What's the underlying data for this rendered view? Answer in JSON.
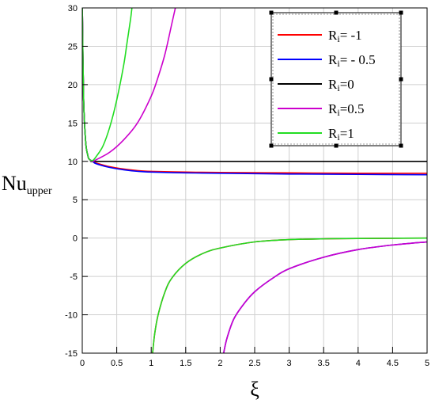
{
  "chart_data": {
    "type": "line",
    "xlabel": "ξ",
    "ylabel": "Nu",
    "ylabel_sub": "upper",
    "xlim": [
      0,
      5
    ],
    "ylim": [
      -15,
      30
    ],
    "grid": true,
    "legend_position": "top-right",
    "x_ticks": [
      0,
      0.5,
      1,
      1.5,
      2,
      2.5,
      3,
      3.5,
      4,
      4.5,
      5
    ],
    "x_tick_labels": [
      "0",
      "0.5",
      "1",
      "1.5",
      "2",
      "2.5",
      "3",
      "3.5",
      "4",
      "4.5",
      "5"
    ],
    "y_ticks": [
      -15,
      -10,
      -5,
      0,
      5,
      10,
      15,
      20,
      25,
      30
    ],
    "y_tick_labels": [
      "-15",
      "-10",
      "-5",
      "0",
      "5",
      "10",
      "15",
      "20",
      "25",
      "30"
    ],
    "series": [
      {
        "name": "Ri= -1",
        "label_main": "R",
        "label_sub": "i",
        "label_rest": "= -1",
        "color": "#ff0000",
        "segments": [
          [
            [
              0.001,
              30
            ],
            [
              0.02,
              18
            ],
            [
              0.05,
              12.5
            ],
            [
              0.08,
              10.8
            ],
            [
              0.1,
              10.3
            ],
            [
              0.15,
              10
            ],
            [
              0.2,
              9.8
            ],
            [
              0.4,
              9.3
            ],
            [
              0.6,
              9
            ],
            [
              0.8,
              8.8
            ],
            [
              1,
              8.7
            ],
            [
              1.5,
              8.6
            ],
            [
              2,
              8.55
            ],
            [
              3,
              8.5
            ],
            [
              4,
              8.45
            ],
            [
              5,
              8.45
            ]
          ],
          [
            [
              1.02,
              -15
            ],
            [
              1.05,
              -12.5
            ],
            [
              1.1,
              -10
            ],
            [
              1.2,
              -7
            ],
            [
              1.3,
              -5.2
            ],
            [
              1.5,
              -3.3
            ],
            [
              1.75,
              -2
            ],
            [
              2,
              -1.3
            ],
            [
              2.5,
              -0.5
            ],
            [
              3,
              -0.2
            ],
            [
              3.5,
              -0.1
            ],
            [
              4,
              -0.05
            ],
            [
              5,
              0
            ]
          ]
        ]
      },
      {
        "name": "Ri= - 0.5",
        "label_main": "R",
        "label_sub": "i",
        "label_rest": "= - 0.5",
        "color": "#0000ff",
        "segments": [
          [
            [
              0.001,
              30
            ],
            [
              0.02,
              18
            ],
            [
              0.05,
              12.5
            ],
            [
              0.08,
              10.8
            ],
            [
              0.1,
              10.3
            ],
            [
              0.15,
              10
            ],
            [
              0.2,
              9.7
            ],
            [
              0.4,
              9.2
            ],
            [
              0.6,
              8.9
            ],
            [
              0.8,
              8.7
            ],
            [
              1,
              8.6
            ],
            [
              1.5,
              8.5
            ],
            [
              2,
              8.45
            ],
            [
              3,
              8.35
            ],
            [
              4,
              8.3
            ],
            [
              5,
              8.25
            ]
          ],
          [
            [
              2.05,
              -15
            ],
            [
              2.1,
              -13
            ],
            [
              2.2,
              -10.5
            ],
            [
              2.35,
              -8.5
            ],
            [
              2.5,
              -7
            ],
            [
              2.75,
              -5.3
            ],
            [
              3,
              -4
            ],
            [
              3.5,
              -2.5
            ],
            [
              4,
              -1.5
            ],
            [
              4.5,
              -0.9
            ],
            [
              5,
              -0.5
            ]
          ]
        ]
      },
      {
        "name": "Ri=0",
        "label_main": "R",
        "label_sub": "i",
        "label_rest": "=0",
        "color": "#000000",
        "segments": [
          [
            [
              0.001,
              30
            ],
            [
              0.02,
              18
            ],
            [
              0.05,
              12.5
            ],
            [
              0.08,
              10.8
            ],
            [
              0.1,
              10.3
            ],
            [
              0.15,
              10
            ],
            [
              0.2,
              10
            ],
            [
              1,
              10
            ],
            [
              2,
              10
            ],
            [
              3,
              10
            ],
            [
              4,
              10
            ],
            [
              5,
              10
            ]
          ]
        ]
      },
      {
        "name": "Ri=0.5",
        "label_main": "R",
        "label_sub": "i",
        "label_rest": "=0.5",
        "color": "#cc00cc",
        "segments": [
          [
            [
              0.001,
              30
            ],
            [
              0.02,
              18
            ],
            [
              0.05,
              12.5
            ],
            [
              0.08,
              10.8
            ],
            [
              0.1,
              10.3
            ],
            [
              0.15,
              10
            ],
            [
              0.2,
              10.2
            ],
            [
              0.4,
              11.2
            ],
            [
              0.6,
              12.8
            ],
            [
              0.8,
              15
            ],
            [
              1,
              18.5
            ],
            [
              1.1,
              21
            ],
            [
              1.2,
              24
            ],
            [
              1.3,
              28
            ],
            [
              1.35,
              30
            ]
          ],
          [
            [
              2.05,
              -15
            ],
            [
              2.1,
              -13
            ],
            [
              2.2,
              -10.5
            ],
            [
              2.35,
              -8.5
            ],
            [
              2.5,
              -7
            ],
            [
              2.75,
              -5.3
            ],
            [
              3,
              -4
            ],
            [
              3.5,
              -2.5
            ],
            [
              4,
              -1.5
            ],
            [
              4.5,
              -0.9
            ],
            [
              5,
              -0.5
            ]
          ]
        ]
      },
      {
        "name": "Ri=1",
        "label_main": "R",
        "label_sub": "i",
        "label_rest": "=1",
        "color": "#22dd22",
        "segments": [
          [
            [
              0.001,
              30
            ],
            [
              0.02,
              18
            ],
            [
              0.05,
              12.5
            ],
            [
              0.08,
              10.8
            ],
            [
              0.1,
              10.3
            ],
            [
              0.15,
              10.1
            ],
            [
              0.2,
              10.6
            ],
            [
              0.3,
              12
            ],
            [
              0.4,
              14.5
            ],
            [
              0.5,
              18
            ],
            [
              0.6,
              22.5
            ],
            [
              0.65,
              25.5
            ],
            [
              0.7,
              28.5
            ],
            [
              0.72,
              30
            ]
          ],
          [
            [
              1.02,
              -15
            ],
            [
              1.05,
              -12.5
            ],
            [
              1.1,
              -10
            ],
            [
              1.2,
              -7
            ],
            [
              1.3,
              -5.2
            ],
            [
              1.5,
              -3.3
            ],
            [
              1.75,
              -2
            ],
            [
              2,
              -1.3
            ],
            [
              2.5,
              -0.5
            ],
            [
              3,
              -0.2
            ],
            [
              3.5,
              -0.1
            ],
            [
              4,
              -0.05
            ],
            [
              5,
              0
            ]
          ]
        ]
      }
    ]
  }
}
